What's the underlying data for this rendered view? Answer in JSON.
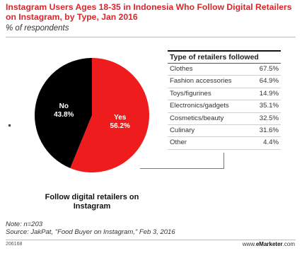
{
  "header": {
    "title": "Instagram Users Ages 18-35 in Indonesia Who Follow Digital Retailers on Instagram, by Type, Jan 2016",
    "subtitle": "% of respondents"
  },
  "chart_data": [
    {
      "type": "pie",
      "slices": [
        {
          "name": "Yes",
          "value": 56.2,
          "label": "56.2%",
          "color": "#ee1c1c"
        },
        {
          "name": "No",
          "value": 43.8,
          "label": "43.8%",
          "color": "#000000"
        }
      ],
      "caption": "Follow digital retailers on Instagram"
    },
    {
      "type": "table",
      "header": "Type of retailers followed",
      "rows": [
        {
          "label": "Clothes",
          "value": "67.5%"
        },
        {
          "label": "Fashion accessories",
          "value": "64.9%"
        },
        {
          "label": "Toys/figurines",
          "value": "14.9%"
        },
        {
          "label": "Electronics/gadgets",
          "value": "35.1%"
        },
        {
          "label": "Cosmetics/beauty",
          "value": "32.5%"
        },
        {
          "label": "Culinary",
          "value": "31.6%"
        },
        {
          "label": "Other",
          "value": "4.4%"
        }
      ]
    }
  ],
  "footer": {
    "note": "Note: n=203",
    "source": "Source: JakPat, \"Food Buyer on Instagram,\" Feb 3, 2016",
    "chart_id": "206168",
    "brand_prefix": "www.",
    "brand_name": "eMarketer",
    "brand_suffix": ".com"
  }
}
